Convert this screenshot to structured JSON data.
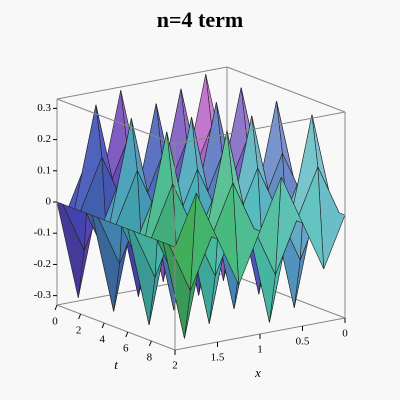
{
  "chart_data": {
    "type": "surface3d",
    "title": "n=4 term",
    "xlabel": "x",
    "tlabel": "t",
    "x": [
      0,
      0.25,
      0.5,
      0.75,
      1,
      1.25,
      1.5,
      1.75,
      2
    ],
    "t": [
      0,
      0.5,
      1,
      1.5,
      2,
      2.5,
      3,
      3.5,
      4,
      4.5,
      5,
      5.5,
      6,
      6.5,
      7,
      7.5,
      8,
      8.5,
      9,
      9.5,
      10
    ],
    "z": [
      [
        0,
        0.32,
        0,
        -0.32,
        0,
        0.32,
        0,
        -0.32,
        0
      ],
      [
        0,
        0.16,
        0,
        -0.16,
        0,
        0.16,
        0,
        -0.16,
        0
      ],
      [
        0,
        -0.16,
        0,
        0.16,
        0,
        -0.16,
        0,
        0.16,
        0
      ],
      [
        0,
        -0.32,
        0,
        0.32,
        0,
        -0.32,
        0,
        0.32,
        0
      ],
      [
        0,
        -0.16,
        0,
        0.16,
        0,
        -0.16,
        0,
        0.16,
        0
      ],
      [
        0,
        0.16,
        0,
        -0.16,
        0,
        0.16,
        0,
        -0.16,
        0
      ],
      [
        0,
        0.32,
        0,
        -0.32,
        0,
        0.32,
        0,
        -0.32,
        0
      ],
      [
        0,
        0.16,
        0,
        -0.16,
        0,
        0.16,
        0,
        -0.16,
        0
      ],
      [
        0,
        -0.16,
        0,
        0.16,
        0,
        -0.16,
        0,
        0.16,
        0
      ],
      [
        0,
        -0.32,
        0,
        0.32,
        0,
        -0.32,
        0,
        0.32,
        0
      ],
      [
        0,
        -0.16,
        0,
        0.16,
        0,
        -0.16,
        0,
        0.16,
        0
      ],
      [
        0,
        0.16,
        0,
        -0.16,
        0,
        0.16,
        0,
        -0.16,
        0
      ],
      [
        0,
        0.32,
        0,
        -0.32,
        0,
        0.32,
        0,
        -0.32,
        0
      ],
      [
        0,
        0.16,
        0,
        -0.16,
        0,
        0.16,
        0,
        -0.16,
        0
      ],
      [
        0,
        -0.16,
        0,
        0.16,
        0,
        -0.16,
        0,
        0.16,
        0
      ],
      [
        0,
        -0.32,
        0,
        0.32,
        0,
        -0.32,
        0,
        0.32,
        0
      ],
      [
        0,
        -0.16,
        0,
        0.16,
        0,
        -0.16,
        0,
        0.16,
        0
      ],
      [
        0,
        0.16,
        0,
        -0.16,
        0,
        0.16,
        0,
        -0.16,
        0
      ],
      [
        0,
        0.32,
        0,
        -0.32,
        0,
        0.32,
        0,
        -0.32,
        0
      ],
      [
        0,
        0.16,
        0,
        -0.16,
        0,
        0.16,
        0,
        -0.16,
        0
      ],
      [
        0,
        -0.16,
        0,
        0.16,
        0,
        -0.16,
        0,
        0.16,
        0
      ]
    ],
    "xlim": [
      0,
      2
    ],
    "tlim": [
      0,
      10
    ],
    "zlim": [
      -0.33,
      0.33
    ],
    "xticks": [
      0,
      0.5,
      1,
      1.5,
      2
    ],
    "tticks": [
      0,
      2,
      4,
      6,
      8
    ],
    "zticks": [
      -0.3,
      -0.2,
      -0.1,
      0,
      0.1,
      0.2,
      0.3
    ]
  }
}
